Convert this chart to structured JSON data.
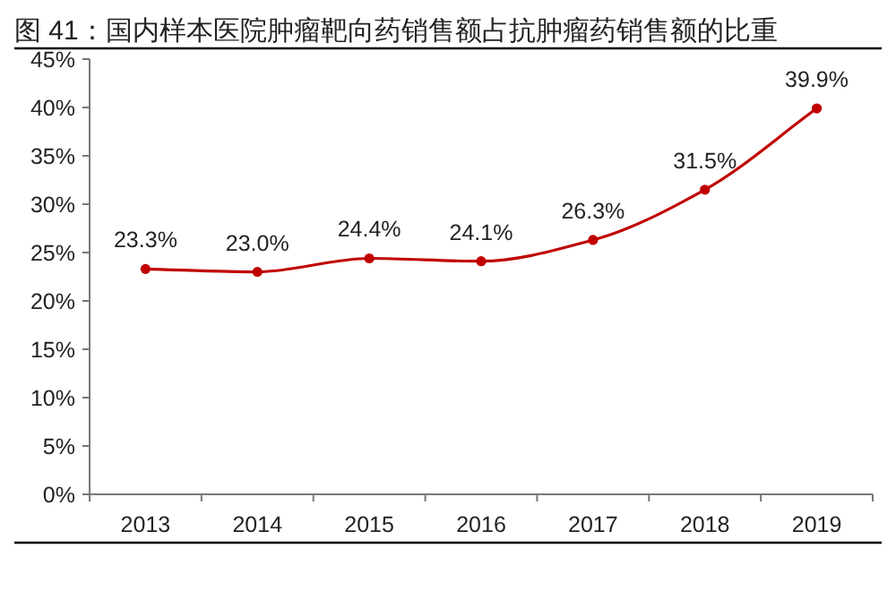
{
  "chart_data": {
    "type": "line",
    "title": "图 41：国内样本医院肿瘤靶向药销售额占抗肿瘤药销售额的比重",
    "categories": [
      "2013",
      "2014",
      "2015",
      "2016",
      "2017",
      "2018",
      "2019"
    ],
    "series": [
      {
        "color": "#c00000",
        "values": [
          23.3,
          23.0,
          24.4,
          24.1,
          26.3,
          31.5,
          39.9
        ],
        "value_labels": [
          "23.3%",
          "23.0%",
          "24.4%",
          "24.1%",
          "26.3%",
          "31.5%",
          "39.9%"
        ]
      }
    ],
    "marker": "circle",
    "line_style": "solid",
    "ylim": [
      0,
      45
    ],
    "yticks": [
      {
        "value": 0,
        "label": "0%"
      },
      {
        "value": 5,
        "label": "5%"
      },
      {
        "value": 10,
        "label": "10%"
      },
      {
        "value": 15,
        "label": "15%"
      },
      {
        "value": 20,
        "label": "20%"
      },
      {
        "value": 25,
        "label": "25%"
      },
      {
        "value": 30,
        "label": "30%"
      },
      {
        "value": 35,
        "label": "35%"
      },
      {
        "value": 40,
        "label": "40%"
      },
      {
        "value": 45,
        "label": "45%"
      }
    ]
  }
}
